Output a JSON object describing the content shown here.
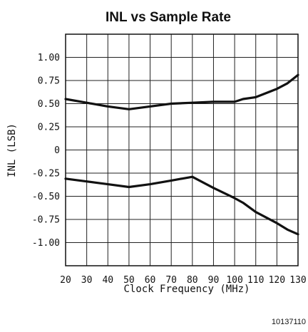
{
  "chart_data": {
    "type": "line",
    "title": "INL vs Sample Rate",
    "xlabel": "Clock Frequency (MHz)",
    "ylabel": "INL (LSB)",
    "xlim": [
      20,
      130
    ],
    "ylim": [
      -1.25,
      1.25
    ],
    "x_ticks": [
      20,
      30,
      40,
      50,
      60,
      70,
      80,
      90,
      100,
      110,
      120,
      130
    ],
    "x_tick_labels": [
      "20",
      "30",
      "40",
      "50",
      "60",
      "70",
      "80",
      "90",
      "100",
      "110",
      "120",
      "130"
    ],
    "y_tick_labels": [
      {
        "value": 1.0,
        "label": "1.00"
      },
      {
        "value": 0.75,
        "label": "0.75"
      },
      {
        "value": 0.5,
        "label": "0.50"
      },
      {
        "value": 0.25,
        "label": "0.25"
      },
      {
        "value": 0,
        "label": "0"
      },
      {
        "value": -0.25,
        "label": "-0.25"
      },
      {
        "value": -0.5,
        "label": "-0.50"
      },
      {
        "value": -0.75,
        "label": "-0.75"
      },
      {
        "value": -1.0,
        "label": "-1.00"
      }
    ],
    "grid": true,
    "series": [
      {
        "x": [
          20,
          30,
          40,
          50,
          60,
          70,
          80,
          90,
          100,
          104,
          110,
          120,
          125,
          130
        ],
        "y": [
          0.55,
          0.51,
          0.47,
          0.44,
          0.47,
          0.5,
          0.51,
          0.52,
          0.52,
          0.55,
          0.57,
          0.66,
          0.72,
          0.81
        ]
      },
      {
        "x": [
          20,
          30,
          40,
          50,
          60,
          70,
          80,
          90,
          100,
          104,
          110,
          120,
          125,
          130
        ],
        "y": [
          -0.31,
          -0.34,
          -0.37,
          -0.4,
          -0.37,
          -0.33,
          -0.29,
          -0.41,
          -0.52,
          -0.57,
          -0.67,
          -0.79,
          -0.86,
          -0.91
        ]
      }
    ],
    "line_color": "#111111",
    "figure_id": "10137110"
  }
}
